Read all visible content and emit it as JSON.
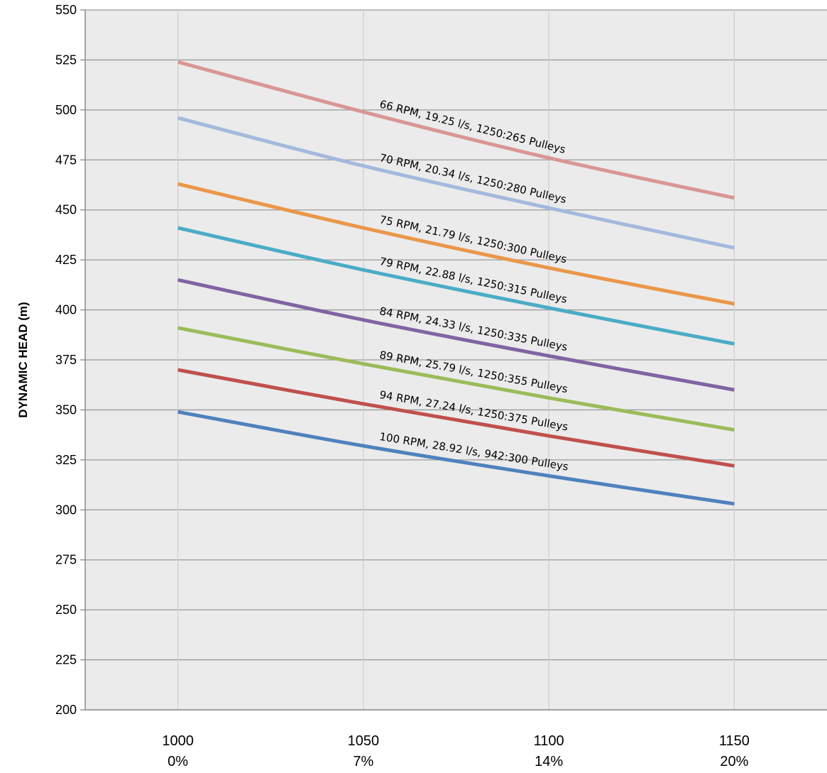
{
  "chart_data": {
    "type": "line",
    "ylabel": "DYNAMIC HEAD (m)",
    "xlabel": "",
    "ylim": [
      200,
      550
    ],
    "yticks": [
      200,
      225,
      250,
      275,
      300,
      325,
      350,
      375,
      400,
      425,
      450,
      475,
      500,
      525,
      550
    ],
    "x": [
      1000,
      1050,
      1100,
      1150
    ],
    "xlim": [
      975,
      1175
    ],
    "x_tick_labels": [
      {
        "value": "1000",
        "percent": "0%"
      },
      {
        "value": "1050",
        "percent": "7%"
      },
      {
        "value": "1100",
        "percent": "14%"
      },
      {
        "value": "1150",
        "percent": "20%"
      }
    ],
    "grid": true,
    "background": "#ebebeb",
    "series": [
      {
        "label": "66 RPM, 19.25 l/s, 1250:265 Pulleys",
        "color": "#d99694",
        "values": [
          524,
          499,
          476,
          456
        ]
      },
      {
        "label": "70 RPM, 20.34 l/s, 1250:280 Pulleys",
        "color": "#a3b9dc",
        "values": [
          496,
          472,
          451,
          431
        ]
      },
      {
        "label": "75 RPM, 21.79 l/s, 1250:300 Pulleys",
        "color": "#ea9649",
        "values": [
          463,
          441,
          421,
          403
        ]
      },
      {
        "label": "79 RPM, 22.88 l/s, 1250:315 Pulleys",
        "color": "#4bacc6",
        "values": [
          441,
          420,
          401,
          383
        ]
      },
      {
        "label": "84 RPM, 24.33 l/s, 1250:335 Pulleys",
        "color": "#8064a2",
        "values": [
          415,
          395,
          377,
          360
        ]
      },
      {
        "label": "89 RPM, 25.79 l/s, 1250:355 Pulleys",
        "color": "#9bbb59",
        "values": [
          391,
          373,
          356,
          340
        ]
      },
      {
        "label": "94 RPM, 27.24 l/s, 1250:375 Pulleys",
        "color": "#c0504d",
        "values": [
          370,
          353,
          337,
          322
        ]
      },
      {
        "label": "100 RPM, 28.92 l/s, 942:300 Pulleys",
        "color": "#4f81bd",
        "values": [
          349,
          332,
          317,
          303
        ]
      }
    ]
  }
}
